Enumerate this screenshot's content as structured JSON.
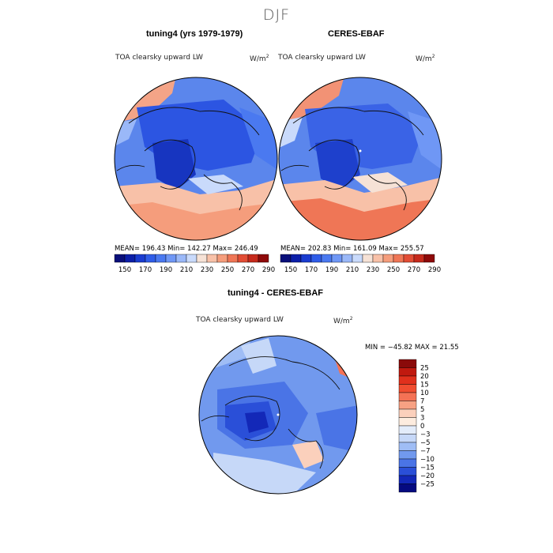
{
  "figure_title": "DJF",
  "panels": [
    {
      "title": "tuning4 (yrs 1979-1979)",
      "variable": "TOA clearsky upward LW",
      "units_base": "W/m",
      "units_exp": "2",
      "stats": "MEAN= 196.43   Min= 142.27   Max= 246.49"
    },
    {
      "title": "CERES-EBAF",
      "variable": "TOA clearsky upward LW",
      "units_base": "W/m",
      "units_exp": "2",
      "stats": "MEAN= 202.83   Min= 161.09   Max= 255.57"
    },
    {
      "title": "tuning4 - CERES-EBAF",
      "variable": "TOA clearsky upward LW",
      "units_base": "W/m",
      "units_exp": "2",
      "stats": "MIN = −45.82  MAX =  21.55"
    }
  ],
  "chart_data": [
    {
      "type": "heatmap",
      "projection": "north polar stereographic",
      "title": "tuning4 (yrs 1979-1979)",
      "variable": "TOA clearsky upward LW",
      "units": "W/m2",
      "mean": 196.43,
      "min": 142.27,
      "max": 246.49,
      "colorbar_levels": [
        150,
        160,
        170,
        180,
        190,
        200,
        210,
        220,
        230,
        240,
        250,
        260,
        270,
        280,
        290
      ],
      "colorbar_tick_labels": [
        "150",
        "170",
        "190",
        "210",
        "230",
        "250",
        "270",
        "290"
      ],
      "colors": [
        "#0a0f7a",
        "#0c1fa8",
        "#1a3cd0",
        "#2f5de8",
        "#4a79f0",
        "#6f97f5",
        "#9ab8f8",
        "#c9dafb",
        "#f6e2d6",
        "#f8c1a8",
        "#f59d7c",
        "#ef7656",
        "#e24d35",
        "#c62a1c",
        "#8e0a0a"
      ]
    },
    {
      "type": "heatmap",
      "projection": "north polar stereographic",
      "title": "CERES-EBAF",
      "variable": "TOA clearsky upward LW",
      "units": "W/m2",
      "mean": 202.83,
      "min": 161.09,
      "max": 255.57,
      "colorbar_levels": [
        150,
        160,
        170,
        180,
        190,
        200,
        210,
        220,
        230,
        240,
        250,
        260,
        270,
        280,
        290
      ],
      "colorbar_tick_labels": [
        "150",
        "170",
        "190",
        "210",
        "230",
        "250",
        "270",
        "290"
      ],
      "colors": [
        "#0a0f7a",
        "#0c1fa8",
        "#1a3cd0",
        "#2f5de8",
        "#4a79f0",
        "#6f97f5",
        "#9ab8f8",
        "#c9dafb",
        "#f6e2d6",
        "#f8c1a8",
        "#f59d7c",
        "#ef7656",
        "#e24d35",
        "#c62a1c",
        "#8e0a0a"
      ]
    },
    {
      "type": "heatmap",
      "projection": "north polar stereographic",
      "title": "tuning4 - CERES-EBAF",
      "variable": "TOA clearsky upward LW",
      "units": "W/m2",
      "min": -45.82,
      "max": 21.55,
      "colorbar_tick_labels": [
        "25",
        "20",
        "15",
        "10",
        "7",
        "5",
        "3",
        "0",
        "−3",
        "−5",
        "−7",
        "−10",
        "−15",
        "−20",
        "−25"
      ],
      "colors": [
        "#8a0a0a",
        "#c0190f",
        "#e0301c",
        "#f04d30",
        "#f47255",
        "#f7a183",
        "#fbd0bc",
        "#fdecdf",
        "#e3ecfa",
        "#c6d8f8",
        "#9fbdf5",
        "#7199ee",
        "#4a74e6",
        "#2a4fd8",
        "#1328b8",
        "#050a80"
      ]
    }
  ]
}
